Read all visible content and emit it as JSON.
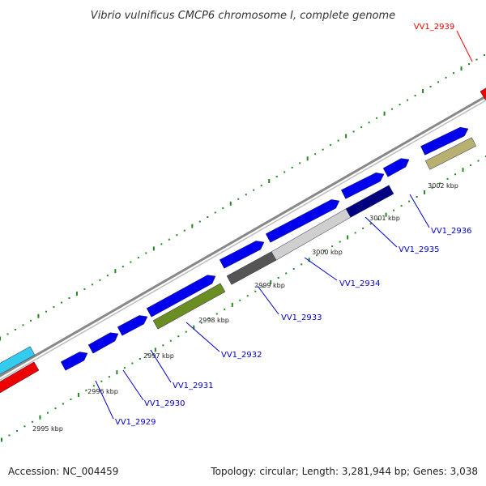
{
  "title": "Vibrio vulnificus CMCP6 chromosome I, complete genome",
  "accession": "Accession: NC_004459",
  "summary": "Topology: circular; Length: 3,281,944 bp; Genes: 3,038",
  "colors": {
    "backbone": "#888888",
    "forward_cds": "#0000ee",
    "highlight": "#ee0000",
    "highlight_alt": "#33ccee",
    "tick": "#228822",
    "label_line": "#0000cc",
    "highlight_label": "#ee0000"
  },
  "ticks": {
    "major_labels": [
      "2995 kbp",
      "2996 kbp",
      "2997 kbp",
      "2998 kbp",
      "2999 kbp",
      "3000 kbp",
      "3001 kbp",
      "3002 kbp"
    ]
  },
  "gene_labels": [
    {
      "name": "VV1_2929",
      "color": "label_line"
    },
    {
      "name": "VV1_2930",
      "color": "label_line"
    },
    {
      "name": "VV1_2931",
      "color": "label_line"
    },
    {
      "name": "VV1_2932",
      "color": "label_line"
    },
    {
      "name": "VV1_2933",
      "color": "label_line"
    },
    {
      "name": "VV1_2934",
      "color": "label_line"
    },
    {
      "name": "VV1_2935",
      "color": "label_line"
    },
    {
      "name": "VV1_2936",
      "color": "label_line"
    },
    {
      "name": "VV1_2939",
      "color": "highlight_label"
    }
  ],
  "features": [
    {
      "track": "forward",
      "kind": "arrow",
      "color": "#0000ee"
    },
    {
      "track": "forward",
      "kind": "arrow",
      "color": "#0000ee"
    },
    {
      "track": "forward",
      "kind": "arrow",
      "color": "#0000ee"
    },
    {
      "track": "forward",
      "kind": "arrow",
      "color": "#0000ee"
    },
    {
      "track": "forward",
      "kind": "arrow",
      "color": "#0000ee"
    },
    {
      "track": "forward",
      "kind": "arrow",
      "color": "#0000ee"
    },
    {
      "track": "forward",
      "kind": "arrow",
      "color": "#0000ee"
    },
    {
      "track": "forward",
      "kind": "arrow",
      "color": "#0000ee"
    },
    {
      "track": "forward",
      "kind": "arrow",
      "color": "#0000ee"
    },
    {
      "track": "inner",
      "kind": "bar",
      "color": "#6b8e23"
    },
    {
      "track": "inner",
      "kind": "bar",
      "color": "#555555"
    },
    {
      "track": "inner",
      "kind": "bar",
      "color": "#cfcfcf"
    },
    {
      "track": "inner",
      "kind": "bar",
      "color": "#000080"
    },
    {
      "track": "inner",
      "kind": "bar",
      "color": "#b8b070"
    },
    {
      "track": "forward",
      "kind": "bar",
      "color": "#33ccee"
    },
    {
      "track": "forward",
      "kind": "bar",
      "color": "#ee0000"
    },
    {
      "track": "forward",
      "kind": "bar",
      "color": "#ee0000"
    }
  ]
}
